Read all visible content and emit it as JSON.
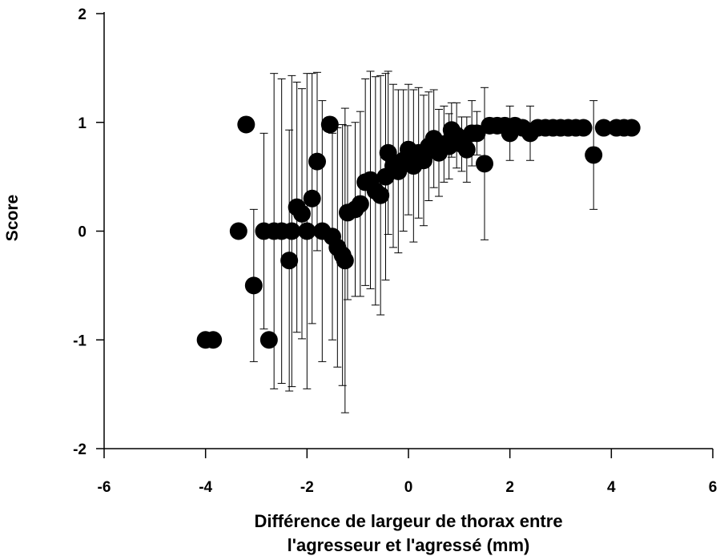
{
  "chart_data": {
    "type": "scatter",
    "title": "",
    "xlabel_lines": [
      "Différence de largeur de thorax entre",
      "l'agresseur et l'agressé (mm)"
    ],
    "ylabel": "Score",
    "xlim": [
      -6,
      6
    ],
    "ylim": [
      -2,
      2
    ],
    "x_ticks": [
      "-6",
      "-4",
      "-2",
      "0",
      "2",
      "4",
      "6"
    ],
    "y_ticks": [
      "-2",
      "-1",
      "0",
      "1",
      "2"
    ],
    "grid": false,
    "legend": "none",
    "marker_color": "#000000",
    "series": [
      {
        "points": [
          {
            "x": -4.0,
            "y": -1.0
          },
          {
            "x": -3.85,
            "y": -1.0
          },
          {
            "x": -3.35,
            "y": 0.0
          },
          {
            "x": -3.2,
            "y": 0.98
          },
          {
            "x": -3.05,
            "y": -0.5,
            "err": 0.7
          },
          {
            "x": -2.85,
            "y": 0.0,
            "err": 0.9
          },
          {
            "x": -2.75,
            "y": -1.0
          },
          {
            "x": -2.65,
            "y": 0.0,
            "err": 1.45
          },
          {
            "x": -2.5,
            "y": 0.0,
            "err": 1.4
          },
          {
            "x": -2.35,
            "y": -0.27,
            "err": 1.2
          },
          {
            "x": -2.3,
            "y": 0.0,
            "err": 1.43
          },
          {
            "x": -2.2,
            "y": 0.22,
            "err": 1.15
          },
          {
            "x": -2.1,
            "y": 0.16,
            "err": 1.15
          },
          {
            "x": -2.0,
            "y": 0.0,
            "err": 1.45
          },
          {
            "x": -1.9,
            "y": 0.3,
            "err": 1.15
          },
          {
            "x": -1.8,
            "y": 0.64,
            "err": 0.82
          },
          {
            "x": -1.7,
            "y": 0.0,
            "err": 1.2
          },
          {
            "x": -1.55,
            "y": 0.98
          },
          {
            "x": -1.5,
            "y": -0.05,
            "err": 0.95
          },
          {
            "x": -1.4,
            "y": -0.15,
            "err": 1.1
          },
          {
            "x": -1.3,
            "y": -0.22,
            "err": 1.2
          },
          {
            "x": -1.25,
            "y": -0.27,
            "err": 1.4
          },
          {
            "x": -1.2,
            "y": 0.17,
            "err": 0.8
          },
          {
            "x": -1.05,
            "y": 0.2,
            "err": 0.8
          },
          {
            "x": -0.95,
            "y": 0.25,
            "err": 0.85
          },
          {
            "x": -0.85,
            "y": 0.45,
            "err": 0.95
          },
          {
            "x": -0.75,
            "y": 0.47,
            "err": 1.0
          },
          {
            "x": -0.65,
            "y": 0.37,
            "err": 1.05
          },
          {
            "x": -0.55,
            "y": 0.33,
            "err": 1.1
          },
          {
            "x": -0.45,
            "y": 0.5,
            "err": 0.95
          },
          {
            "x": -0.4,
            "y": 0.72,
            "err": 0.75
          },
          {
            "x": -0.3,
            "y": 0.6,
            "err": 0.75
          },
          {
            "x": -0.2,
            "y": 0.55,
            "err": 0.75
          },
          {
            "x": -0.1,
            "y": 0.65,
            "err": 0.65
          },
          {
            "x": 0.0,
            "y": 0.75,
            "err": 0.6
          },
          {
            "x": 0.1,
            "y": 0.6,
            "err": 0.7
          },
          {
            "x": 0.2,
            "y": 0.72,
            "err": 0.6
          },
          {
            "x": 0.3,
            "y": 0.65,
            "err": 0.6
          },
          {
            "x": 0.4,
            "y": 0.78,
            "err": 0.5
          },
          {
            "x": 0.5,
            "y": 0.85,
            "err": 0.45
          },
          {
            "x": 0.6,
            "y": 0.72,
            "err": 0.4
          },
          {
            "x": 0.7,
            "y": 0.8,
            "err": 0.35
          },
          {
            "x": 0.8,
            "y": 0.78,
            "err": 0.3
          },
          {
            "x": 0.85,
            "y": 0.93,
            "err": 0.25
          },
          {
            "x": 0.95,
            "y": 0.88,
            "err": 0.3
          },
          {
            "x": 1.05,
            "y": 0.8,
            "err": 0.25
          },
          {
            "x": 1.15,
            "y": 0.75,
            "err": 0.3
          },
          {
            "x": 1.25,
            "y": 0.9,
            "err": 0.3
          },
          {
            "x": 1.35,
            "y": 0.9,
            "err": 0.2
          },
          {
            "x": 1.5,
            "y": 0.62,
            "err": 0.7
          },
          {
            "x": 1.6,
            "y": 0.97
          },
          {
            "x": 1.75,
            "y": 0.97
          },
          {
            "x": 1.9,
            "y": 0.97
          },
          {
            "x": 2.0,
            "y": 0.9,
            "err": 0.25
          },
          {
            "x": 2.1,
            "y": 0.97
          },
          {
            "x": 2.25,
            "y": 0.95
          },
          {
            "x": 2.4,
            "y": 0.9,
            "err": 0.25
          },
          {
            "x": 2.55,
            "y": 0.95
          },
          {
            "x": 2.7,
            "y": 0.95
          },
          {
            "x": 2.85,
            "y": 0.95
          },
          {
            "x": 3.0,
            "y": 0.95
          },
          {
            "x": 3.15,
            "y": 0.95
          },
          {
            "x": 3.3,
            "y": 0.95
          },
          {
            "x": 3.45,
            "y": 0.95
          },
          {
            "x": 3.65,
            "y": 0.7,
            "err": 0.5
          },
          {
            "x": 3.85,
            "y": 0.95
          },
          {
            "x": 4.1,
            "y": 0.95
          },
          {
            "x": 4.25,
            "y": 0.95
          },
          {
            "x": 4.4,
            "y": 0.95
          }
        ]
      }
    ]
  }
}
